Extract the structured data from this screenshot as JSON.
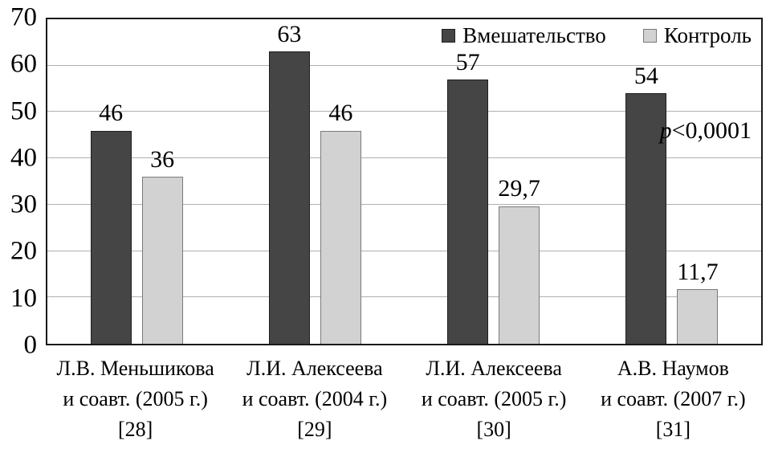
{
  "chart_data": {
    "type": "bar",
    "title": "",
    "xlabel": "",
    "ylabel": "",
    "categories": [
      [
        "Л.В. Меньшикова",
        "и соавт. (2005 г.)",
        "[28]"
      ],
      [
        "Л.И. Алексеева",
        "и соавт. (2004 г.)",
        "[29]"
      ],
      [
        "Л.И. Алексеева",
        "и соавт. (2005 г.)",
        "[30]"
      ],
      [
        "А.В. Наумов",
        "и соавт. (2007 г.)",
        "[31]"
      ]
    ],
    "series": [
      {
        "name": "Вмешательство",
        "values": [
          46,
          63,
          57,
          54
        ],
        "value_labels": [
          "46",
          "63",
          "57",
          "54"
        ],
        "color": "#454545",
        "border_color": "#1f1f1f"
      },
      {
        "name": "Контроль",
        "values": [
          36,
          46,
          29.7,
          11.7
        ],
        "value_labels": [
          "36",
          "46",
          "29,7",
          "11,7"
        ],
        "color": "#d2d2d2",
        "border_color": "#7a7a7a"
      }
    ],
    "ylim": [
      0,
      70
    ],
    "yticks": [
      0,
      10,
      20,
      30,
      40,
      50,
      60,
      70
    ],
    "grid": true,
    "gridline_color": "#b0b0b0",
    "plot_border_color": "#1a1a1a",
    "legend_position": "top-right-inside",
    "annotation_p": "p",
    "annotation_rest": "<0,0001"
  }
}
